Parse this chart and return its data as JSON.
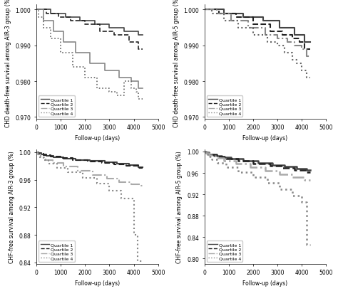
{
  "subplots": [
    {
      "ylabel": "CHD death-free survival among AIR-3 group (%)",
      "xlabel": "Follow-up (days)",
      "ylim": [
        0.9695,
        1.0015
      ],
      "xlim": [
        0,
        5000
      ],
      "yticks": [
        0.97,
        0.98,
        0.99,
        1.0
      ],
      "ytick_labels": [
        "0.970",
        "0.980",
        "0.990",
        "1.000"
      ],
      "xticks": [
        0,
        1000,
        2000,
        3000,
        4000,
        5000
      ],
      "curves": [
        {
          "x": [
            0,
            600,
            600,
            1200,
            1200,
            1800,
            1800,
            2400,
            2400,
            3000,
            3000,
            3600,
            3600,
            4200,
            4200,
            4350
          ],
          "y": [
            1.0,
            1.0,
            0.999,
            0.999,
            0.998,
            0.998,
            0.997,
            0.997,
            0.996,
            0.996,
            0.995,
            0.995,
            0.994,
            0.994,
            0.993,
            0.993
          ],
          "color": "#444444",
          "linestyle": "-",
          "linewidth": 1.2,
          "label": "Quartile 1"
        },
        {
          "x": [
            0,
            400,
            400,
            900,
            900,
            1400,
            1400,
            2000,
            2000,
            2600,
            2600,
            3200,
            3200,
            3800,
            3800,
            4200,
            4200,
            4350
          ],
          "y": [
            1.0,
            1.0,
            0.999,
            0.999,
            0.998,
            0.998,
            0.997,
            0.997,
            0.996,
            0.996,
            0.994,
            0.994,
            0.993,
            0.993,
            0.991,
            0.991,
            0.989,
            0.989
          ],
          "color": "#222222",
          "linestyle": "--",
          "linewidth": 1.2,
          "label": "Quartile 2"
        },
        {
          "x": [
            0,
            300,
            300,
            700,
            700,
            1100,
            1100,
            1600,
            1600,
            2200,
            2200,
            2800,
            2800,
            3400,
            3400,
            3900,
            3900,
            4200,
            4200,
            4350
          ],
          "y": [
            1.0,
            1.0,
            0.997,
            0.997,
            0.994,
            0.994,
            0.991,
            0.991,
            0.988,
            0.988,
            0.985,
            0.985,
            0.983,
            0.983,
            0.981,
            0.981,
            0.98,
            0.98,
            0.978,
            0.978
          ],
          "color": "#888888",
          "linestyle": "-",
          "linewidth": 1.2,
          "label": "Quartile 3"
        },
        {
          "x": [
            0,
            100,
            100,
            300,
            300,
            600,
            600,
            1000,
            1000,
            1500,
            1500,
            2000,
            2000,
            2500,
            2500,
            3000,
            3000,
            3300,
            3300,
            3600,
            3600,
            3900,
            3900,
            4100,
            4100,
            4200,
            4200,
            4350
          ],
          "y": [
            1.0,
            1.0,
            0.998,
            0.998,
            0.995,
            0.995,
            0.992,
            0.992,
            0.988,
            0.988,
            0.984,
            0.984,
            0.981,
            0.981,
            0.978,
            0.978,
            0.977,
            0.977,
            0.976,
            0.976,
            0.98,
            0.98,
            0.978,
            0.978,
            0.977,
            0.977,
            0.975,
            0.975
          ],
          "color": "#666666",
          "linestyle": ":",
          "linewidth": 1.2,
          "label": "Quartile 4"
        }
      ]
    },
    {
      "ylabel": "CHD death-free survival among AIR-5 group (%)",
      "xlabel": "Follow-up (days)",
      "ylim": [
        0.9695,
        1.0015
      ],
      "xlim": [
        0,
        5000
      ],
      "yticks": [
        0.97,
        0.98,
        0.99,
        1.0
      ],
      "ytick_labels": [
        "0.970",
        "0.980",
        "0.990",
        "1.000"
      ],
      "xticks": [
        0,
        1000,
        2000,
        3000,
        4000,
        5000
      ],
      "curves": [
        {
          "x": [
            0,
            800,
            800,
            1600,
            1600,
            2400,
            2400,
            3100,
            3100,
            3700,
            3700,
            4100,
            4100,
            4350
          ],
          "y": [
            1.0,
            1.0,
            0.999,
            0.999,
            0.998,
            0.998,
            0.997,
            0.997,
            0.995,
            0.995,
            0.993,
            0.993,
            0.991,
            0.991
          ],
          "color": "#444444",
          "linestyle": "-",
          "linewidth": 1.5,
          "label": "Quartile 1"
        },
        {
          "x": [
            0,
            600,
            600,
            1300,
            1300,
            2000,
            2000,
            2700,
            2700,
            3200,
            3200,
            3600,
            3600,
            3900,
            3900,
            4100,
            4100,
            4350
          ],
          "y": [
            1.0,
            1.0,
            0.999,
            0.999,
            0.998,
            0.998,
            0.996,
            0.996,
            0.994,
            0.994,
            0.993,
            0.993,
            0.992,
            0.992,
            0.991,
            0.991,
            0.989,
            0.989
          ],
          "color": "#222222",
          "linestyle": "--",
          "linewidth": 1.5,
          "label": "Quartile 2"
        },
        {
          "x": [
            0,
            500,
            500,
            1100,
            1100,
            1800,
            1800,
            2500,
            2500,
            3000,
            3000,
            3400,
            3400,
            3700,
            3700,
            4000,
            4000,
            4200,
            4200,
            4350
          ],
          "y": [
            1.0,
            1.0,
            0.999,
            0.999,
            0.997,
            0.997,
            0.995,
            0.995,
            0.993,
            0.993,
            0.992,
            0.992,
            0.991,
            0.991,
            0.99,
            0.99,
            0.989,
            0.989,
            0.987,
            0.987
          ],
          "color": "#888888",
          "linestyle": "-.",
          "linewidth": 1.5,
          "label": "Quartile 3"
        },
        {
          "x": [
            0,
            300,
            300,
            800,
            800,
            1400,
            1400,
            2000,
            2000,
            2600,
            2600,
            3000,
            3000,
            3300,
            3300,
            3600,
            3600,
            3800,
            3800,
            4000,
            4000,
            4200,
            4200,
            4350
          ],
          "y": [
            1.0,
            1.0,
            0.999,
            0.999,
            0.997,
            0.997,
            0.995,
            0.995,
            0.993,
            0.993,
            0.991,
            0.991,
            0.99,
            0.99,
            0.988,
            0.988,
            0.986,
            0.986,
            0.985,
            0.985,
            0.983,
            0.983,
            0.981,
            0.981
          ],
          "color": "#666666",
          "linestyle": ":",
          "linewidth": 1.5,
          "label": "Quartile 4"
        }
      ]
    },
    {
      "ylabel": "CHF-free survival among AIR-3 group (%)",
      "xlabel": "Follow-up (days)",
      "ylim": [
        0.838,
        1.004
      ],
      "xlim": [
        0,
        5000
      ],
      "yticks": [
        0.84,
        0.88,
        0.92,
        0.96,
        1.0
      ],
      "ytick_labels": [
        "0.84",
        "0.88",
        "0.92",
        "0.96",
        "1.00"
      ],
      "xticks": [
        0,
        1000,
        2000,
        3000,
        4000,
        5000
      ],
      "curves": [
        {
          "x": [
            0,
            80,
            80,
            200,
            200,
            400,
            400,
            700,
            700,
            1100,
            1100,
            1600,
            1600,
            2200,
            2200,
            2800,
            2800,
            3300,
            3300,
            3800,
            3800,
            4200,
            4200,
            4350
          ],
          "y": [
            1.0,
            1.0,
            0.999,
            0.999,
            0.997,
            0.997,
            0.995,
            0.995,
            0.993,
            0.993,
            0.991,
            0.991,
            0.989,
            0.989,
            0.987,
            0.987,
            0.985,
            0.985,
            0.983,
            0.983,
            0.981,
            0.981,
            0.978,
            0.978
          ],
          "color": "#444444",
          "linestyle": "-",
          "linewidth": 1.5,
          "label": "Quartile 1"
        },
        {
          "x": [
            0,
            100,
            100,
            300,
            300,
            600,
            600,
            1000,
            1000,
            1500,
            1500,
            2100,
            2100,
            2700,
            2700,
            3200,
            3200,
            3700,
            3700,
            4200,
            4200,
            4350
          ],
          "y": [
            1.0,
            1.0,
            0.998,
            0.998,
            0.996,
            0.996,
            0.994,
            0.994,
            0.992,
            0.992,
            0.989,
            0.989,
            0.986,
            0.986,
            0.984,
            0.984,
            0.982,
            0.982,
            0.98,
            0.98,
            0.977,
            0.977
          ],
          "color": "#222222",
          "linestyle": "--",
          "linewidth": 1.5,
          "label": "Quartile 2"
        },
        {
          "x": [
            0,
            60,
            60,
            180,
            180,
            380,
            380,
            680,
            680,
            1100,
            1100,
            1700,
            1700,
            2300,
            2300,
            2900,
            2900,
            3400,
            3400,
            3900,
            3900,
            4300,
            4300,
            4350
          ],
          "y": [
            1.0,
            1.0,
            0.997,
            0.997,
            0.993,
            0.993,
            0.989,
            0.989,
            0.984,
            0.984,
            0.979,
            0.979,
            0.973,
            0.973,
            0.967,
            0.967,
            0.962,
            0.962,
            0.957,
            0.957,
            0.953,
            0.953,
            0.951,
            0.951
          ],
          "color": "#aaaaaa",
          "linestyle": "-.",
          "linewidth": 1.5,
          "label": "Quartile 3"
        },
        {
          "x": [
            0,
            40,
            40,
            130,
            130,
            280,
            280,
            500,
            500,
            850,
            850,
            1300,
            1300,
            1900,
            1900,
            2500,
            2500,
            3000,
            3000,
            3500,
            3500,
            4000,
            4000,
            4150,
            4150,
            4350
          ],
          "y": [
            1.0,
            1.0,
            0.997,
            0.997,
            0.993,
            0.993,
            0.988,
            0.988,
            0.983,
            0.983,
            0.977,
            0.977,
            0.971,
            0.971,
            0.963,
            0.963,
            0.954,
            0.954,
            0.944,
            0.944,
            0.933,
            0.933,
            0.88,
            0.88,
            0.842,
            0.842
          ],
          "color": "#888888",
          "linestyle": ":",
          "linewidth": 1.5,
          "label": "Quartile 4"
        }
      ]
    },
    {
      "ylabel": "CHF-free survival among AIR-5 group (%)",
      "xlabel": "Follow-up (days)",
      "ylim": [
        0.79,
        1.004
      ],
      "xlim": [
        0,
        5000
      ],
      "yticks": [
        0.8,
        0.84,
        0.88,
        0.92,
        0.96,
        1.0
      ],
      "ytick_labels": [
        "0.80",
        "0.84",
        "0.88",
        "0.92",
        "0.96",
        "1.00"
      ],
      "xticks": [
        0,
        1000,
        2000,
        3000,
        4000,
        5000
      ],
      "curves": [
        {
          "x": [
            0,
            60,
            60,
            180,
            180,
            400,
            400,
            700,
            700,
            1100,
            1100,
            1600,
            1600,
            2200,
            2200,
            2800,
            2800,
            3300,
            3300,
            3800,
            3800,
            4200,
            4200,
            4350
          ],
          "y": [
            1.0,
            1.0,
            0.998,
            0.998,
            0.995,
            0.995,
            0.992,
            0.992,
            0.989,
            0.989,
            0.986,
            0.986,
            0.983,
            0.983,
            0.979,
            0.979,
            0.975,
            0.975,
            0.972,
            0.972,
            0.968,
            0.968,
            0.965,
            0.965
          ],
          "color": "#444444",
          "linestyle": "-",
          "linewidth": 1.8,
          "label": "Quartile 1"
        },
        {
          "x": [
            0,
            80,
            80,
            250,
            250,
            500,
            500,
            900,
            900,
            1400,
            1400,
            2000,
            2000,
            2700,
            2700,
            3200,
            3200,
            3700,
            3700,
            4200,
            4200,
            4350
          ],
          "y": [
            1.0,
            1.0,
            0.997,
            0.997,
            0.994,
            0.994,
            0.991,
            0.991,
            0.987,
            0.987,
            0.983,
            0.983,
            0.978,
            0.978,
            0.974,
            0.974,
            0.97,
            0.97,
            0.965,
            0.965,
            0.961,
            0.961
          ],
          "color": "#222222",
          "linestyle": "--",
          "linewidth": 1.8,
          "label": "Quartile 2"
        },
        {
          "x": [
            0,
            60,
            60,
            200,
            200,
            450,
            450,
            800,
            800,
            1300,
            1300,
            1900,
            1900,
            2500,
            2500,
            3100,
            3100,
            3600,
            3600,
            4100,
            4100,
            4350
          ],
          "y": [
            1.0,
            1.0,
            0.997,
            0.997,
            0.993,
            0.993,
            0.988,
            0.988,
            0.983,
            0.983,
            0.977,
            0.977,
            0.971,
            0.971,
            0.964,
            0.964,
            0.958,
            0.958,
            0.952,
            0.952,
            0.947,
            0.947
          ],
          "color": "#aaaaaa",
          "linestyle": "-.",
          "linewidth": 1.8,
          "label": "Quartile 3"
        },
        {
          "x": [
            0,
            40,
            40,
            130,
            130,
            300,
            300,
            550,
            550,
            900,
            900,
            1400,
            1400,
            2000,
            2000,
            2600,
            2600,
            3100,
            3100,
            3600,
            3600,
            4000,
            4000,
            4200,
            4200,
            4350
          ],
          "y": [
            1.0,
            1.0,
            0.996,
            0.996,
            0.991,
            0.991,
            0.985,
            0.985,
            0.979,
            0.979,
            0.971,
            0.971,
            0.962,
            0.962,
            0.952,
            0.952,
            0.941,
            0.941,
            0.93,
            0.93,
            0.918,
            0.918,
            0.905,
            0.905,
            0.826,
            0.826
          ],
          "color": "#888888",
          "linestyle": ":",
          "linewidth": 1.8,
          "label": "Quartile 4"
        }
      ]
    }
  ],
  "legend_labels": [
    "Quartile 1",
    "Quartile 2",
    "Quartile 3",
    "Quartile 4"
  ],
  "background_color": "#ffffff",
  "tick_font_size": 5.5,
  "label_font_size": 5.5
}
